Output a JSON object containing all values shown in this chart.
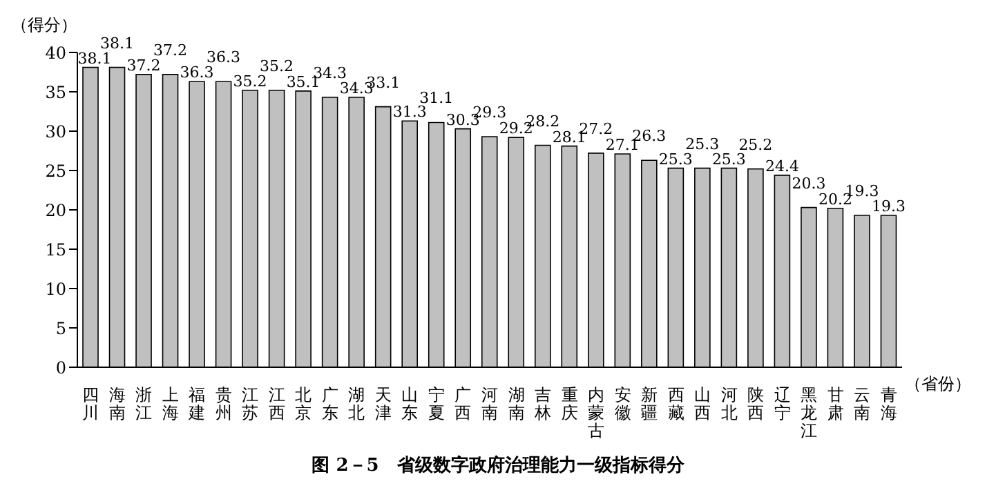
{
  "chart_data": {
    "type": "bar",
    "title": "图 2－5　省级数字政府治理能力一级指标得分",
    "xlabel": "（省份）",
    "ylabel": "（得分）",
    "categories": [
      "四川",
      "海南",
      "浙江",
      "上海",
      "福建",
      "贵州",
      "江苏",
      "江西",
      "北京",
      "广东",
      "湖北",
      "天津",
      "山东",
      "宁夏",
      "广西",
      "河南",
      "湖南",
      "吉林",
      "重庆",
      "内蒙古",
      "安徽",
      "新疆",
      "西藏",
      "山西",
      "河北",
      "陕西",
      "辽宁",
      "黑龙江",
      "甘肃",
      "云南",
      "青海"
    ],
    "values": [
      38.1,
      38.1,
      37.2,
      37.2,
      36.3,
      36.3,
      35.2,
      35.2,
      35.1,
      34.3,
      34.3,
      33.1,
      31.3,
      31.1,
      30.3,
      29.3,
      29.2,
      28.2,
      28.1,
      27.2,
      27.1,
      26.3,
      25.3,
      25.3,
      25.3,
      25.2,
      24.4,
      20.3,
      20.2,
      19.3,
      19.3
    ],
    "color": "#c0c0c0",
    "ylim": [
      0,
      40
    ],
    "yticks": [
      0,
      5,
      10,
      15,
      20,
      25,
      30,
      35,
      40
    ],
    "data_labels": true,
    "grid": false
  }
}
